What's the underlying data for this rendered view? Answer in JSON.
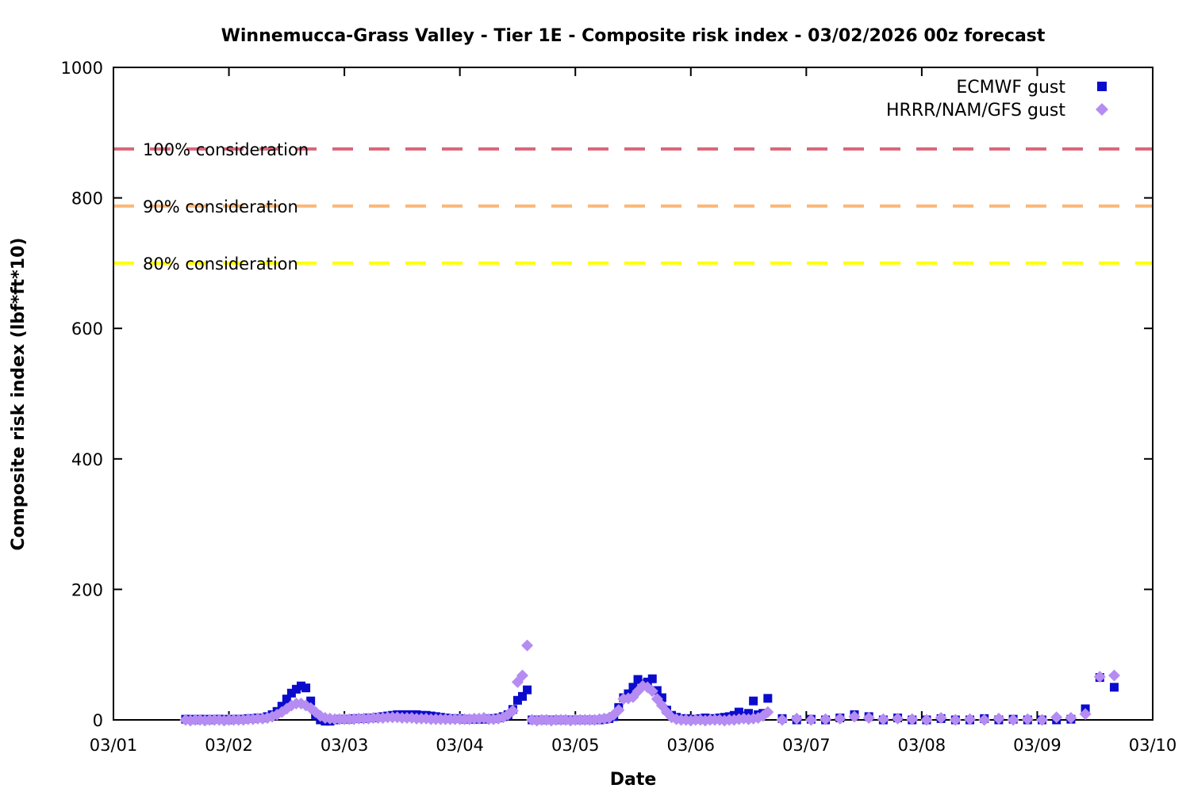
{
  "chart_data": {
    "type": "scatter",
    "title": "Winnemucca-Grass Valley - Tier 1E - Composite risk index - 03/02/2026 00z forecast",
    "xlabel": "Date",
    "ylabel": "Composite risk index (lbf*ft*10)",
    "x_tick_labels": [
      "03/01",
      "03/02",
      "03/03",
      "03/04",
      "03/05",
      "03/06",
      "03/07",
      "03/08",
      "03/09",
      "03/10"
    ],
    "x_range_days": [
      0,
      9
    ],
    "y_ticks": [
      0,
      200,
      400,
      600,
      800,
      1000
    ],
    "y_range": [
      0,
      1000
    ],
    "grid": false,
    "legend_position": "top-right-inside",
    "thresholds": [
      {
        "label": "100% consideration",
        "value": 875,
        "color": "#d9657a"
      },
      {
        "label": "90% consideration",
        "value": 787.5,
        "color": "#fbb878"
      },
      {
        "label": "80% consideration",
        "value": 700,
        "color": "#ffff00"
      }
    ],
    "series": [
      {
        "name": "ECMWF gust",
        "marker": "square",
        "color": "#0b0bcd",
        "hourly_start_hour": 15,
        "hourly_step_hours": 1,
        "hourly_values": [
          1,
          1,
          0,
          1,
          1,
          0,
          1,
          1,
          1,
          0,
          1,
          1,
          1,
          2,
          2,
          3,
          3,
          5,
          8,
          13,
          21,
          32,
          41,
          47,
          52,
          49,
          29,
          8,
          0,
          -2,
          -2,
          0,
          1,
          1,
          1,
          2,
          2,
          2,
          3,
          3,
          4,
          5,
          6,
          7,
          8,
          8,
          8,
          8,
          8,
          7,
          7,
          6,
          5,
          4,
          3,
          2,
          2,
          2,
          1,
          1,
          1,
          1,
          1,
          2,
          2,
          3,
          5,
          8,
          16,
          30,
          36,
          46,
          0,
          0,
          0,
          0,
          0,
          0,
          0,
          0,
          0,
          0,
          0,
          0,
          0,
          0,
          0,
          1,
          2,
          5,
          19,
          34,
          40,
          50,
          62,
          55,
          58,
          63,
          45,
          34,
          15,
          7,
          4,
          2,
          2,
          1,
          1,
          2,
          3,
          2,
          2,
          3,
          4,
          5,
          7,
          12,
          6,
          10,
          29,
          8,
          10,
          33
        ],
        "late_start_hour": 139,
        "late_step_hours": 3,
        "late_values": [
          2,
          0,
          1,
          0,
          3,
          8,
          5,
          0,
          3,
          0,
          0,
          2,
          0,
          0,
          2,
          0,
          1,
          0,
          0,
          0,
          1,
          17,
          65,
          50
        ]
      },
      {
        "name": "HRRR/NAM/GFS gust",
        "marker": "diamond",
        "color": "#b58cf2",
        "hourly_start_hour": 15,
        "hourly_step_hours": 1,
        "hourly_values": [
          0,
          -1,
          0,
          0,
          -1,
          0,
          0,
          0,
          -1,
          0,
          0,
          0,
          0,
          1,
          1,
          2,
          2,
          3,
          5,
          8,
          12,
          17,
          22,
          25,
          25,
          22,
          18,
          12,
          6,
          3,
          2,
          1,
          1,
          1,
          1,
          1,
          2,
          2,
          2,
          3,
          3,
          3,
          4,
          4,
          4,
          3,
          3,
          3,
          2,
          2,
          2,
          1,
          1,
          1,
          1,
          1,
          1,
          1,
          1,
          1,
          2,
          2,
          3,
          1,
          1,
          2,
          4,
          8,
          14,
          58,
          68,
          114,
          0,
          -1,
          0,
          0,
          -1,
          0,
          0,
          0,
          -1,
          0,
          0,
          0,
          0,
          0,
          1,
          2,
          3,
          8,
          15,
          32,
          33,
          35,
          44,
          52,
          50,
          44,
          32,
          22,
          12,
          4,
          1,
          0,
          0,
          -1,
          0,
          0,
          -1,
          0,
          0,
          0,
          -1,
          0,
          0,
          1,
          2,
          1,
          2,
          3,
          6,
          12
        ],
        "late_start_hour": 139,
        "late_step_hours": 3,
        "late_values": [
          0,
          2,
          0,
          1,
          2,
          5,
          3,
          1,
          2,
          1,
          0,
          3,
          0,
          1,
          0,
          2,
          0,
          1,
          0,
          4,
          3,
          9,
          66,
          68
        ]
      }
    ]
  },
  "legend": {
    "ecmwf_label": "ECMWF gust",
    "hrrr_label": "HRRR/NAM/GFS gust"
  },
  "labels": {
    "title": "Winnemucca-Grass Valley - Tier 1E - Composite risk index - 03/02/2026 00z forecast",
    "xlabel": "Date",
    "ylabel": "Composite risk index (lbf*ft*10)"
  }
}
